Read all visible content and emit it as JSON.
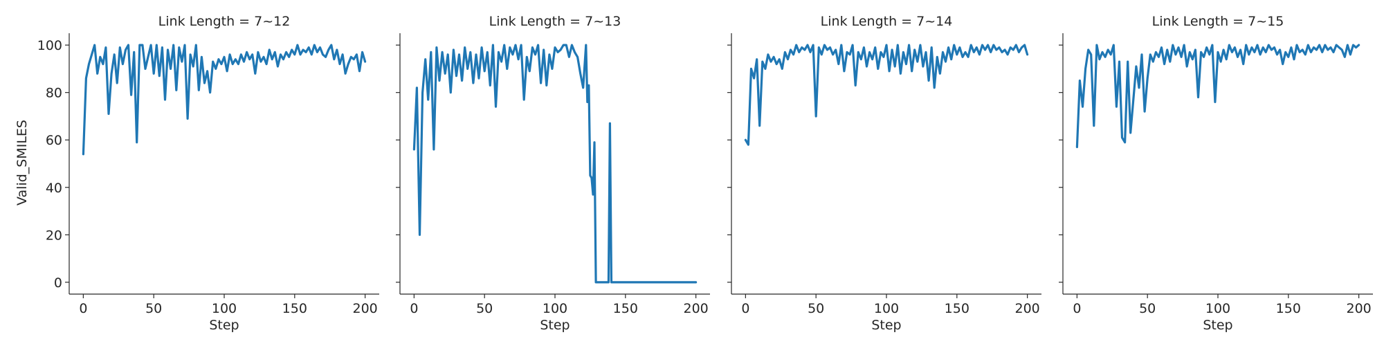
{
  "chart_data": {
    "type": "line",
    "layout": "facet-grid 1x4",
    "shared_y": true,
    "ylabel": "Valid_SMILES",
    "xlabel": "Step",
    "xlim": [
      -10,
      210
    ],
    "ylim": [
      -5,
      105
    ],
    "xticks": [
      0,
      50,
      100,
      150,
      200
    ],
    "yticks": [
      0,
      20,
      40,
      60,
      80,
      100
    ],
    "line_color": "#1f77b4",
    "panels": [
      {
        "title": "Link Length = 7~12",
        "x": [
          0,
          2,
          4,
          6,
          8,
          10,
          12,
          14,
          16,
          18,
          20,
          22,
          24,
          26,
          28,
          30,
          32,
          34,
          36,
          38,
          40,
          42,
          44,
          46,
          48,
          50,
          52,
          54,
          56,
          58,
          60,
          62,
          64,
          66,
          68,
          70,
          72,
          74,
          76,
          78,
          80,
          82,
          84,
          86,
          88,
          90,
          92,
          94,
          96,
          98,
          100,
          102,
          104,
          106,
          108,
          110,
          112,
          114,
          116,
          118,
          120,
          122,
          124,
          126,
          128,
          130,
          132,
          134,
          136,
          138,
          140,
          142,
          144,
          146,
          148,
          150,
          152,
          154,
          156,
          158,
          160,
          162,
          164,
          166,
          168,
          170,
          172,
          174,
          176,
          178,
          180,
          182,
          184,
          186,
          188,
          190,
          192,
          194,
          196,
          198,
          200
        ],
        "y": [
          54,
          86,
          92,
          96,
          100,
          88,
          95,
          92,
          99,
          71,
          88,
          96,
          84,
          99,
          92,
          98,
          100,
          79,
          97,
          59,
          100,
          100,
          90,
          95,
          100,
          88,
          100,
          87,
          99,
          77,
          98,
          90,
          100,
          81,
          99,
          93,
          100,
          69,
          96,
          91,
          100,
          81,
          95,
          84,
          89,
          80,
          93,
          90,
          94,
          92,
          95,
          89,
          96,
          92,
          94,
          92,
          96,
          93,
          97,
          94,
          96,
          88,
          97,
          93,
          95,
          92,
          98,
          94,
          97,
          91,
          96,
          94,
          97,
          95,
          98,
          96,
          100,
          96,
          98,
          97,
          99,
          96,
          100,
          97,
          99,
          96,
          95,
          98,
          100,
          94,
          98,
          92,
          96,
          88,
          92,
          95,
          94,
          96,
          89,
          97,
          93
        ]
      },
      {
        "title": "Link Length = 7~13",
        "x": [
          0,
          2,
          4,
          6,
          8,
          10,
          12,
          14,
          16,
          18,
          20,
          22,
          24,
          26,
          28,
          30,
          32,
          34,
          36,
          38,
          40,
          42,
          44,
          46,
          48,
          50,
          52,
          54,
          56,
          58,
          60,
          62,
          64,
          66,
          68,
          70,
          72,
          74,
          76,
          78,
          80,
          82,
          84,
          86,
          88,
          90,
          92,
          94,
          96,
          98,
          100,
          102,
          104,
          106,
          108,
          110,
          112,
          114,
          116,
          118,
          120,
          122,
          123,
          124,
          125,
          126,
          127,
          128,
          129,
          130,
          132,
          134,
          136,
          138,
          139,
          140,
          141,
          142,
          144,
          150,
          160,
          170,
          180,
          190,
          200
        ],
        "y": [
          56,
          82,
          20,
          80,
          94,
          77,
          97,
          56,
          99,
          85,
          97,
          88,
          96,
          80,
          98,
          87,
          96,
          85,
          99,
          90,
          97,
          84,
          96,
          86,
          99,
          89,
          97,
          83,
          100,
          74,
          97,
          93,
          100,
          90,
          99,
          96,
          100,
          94,
          100,
          77,
          95,
          89,
          99,
          96,
          100,
          84,
          98,
          83,
          96,
          90,
          99,
          97,
          98,
          100,
          100,
          95,
          100,
          97,
          95,
          88,
          82,
          100,
          76,
          83,
          45,
          44,
          37,
          59,
          0,
          0,
          0,
          0,
          0,
          0,
          67,
          0,
          0,
          0,
          0,
          0,
          0,
          0,
          0,
          0,
          0
        ]
      },
      {
        "title": "Link Length = 7~14",
        "x": [
          0,
          2,
          4,
          6,
          8,
          10,
          12,
          14,
          16,
          18,
          20,
          22,
          24,
          26,
          28,
          30,
          32,
          34,
          36,
          38,
          40,
          42,
          44,
          46,
          48,
          50,
          52,
          54,
          56,
          58,
          60,
          62,
          64,
          66,
          68,
          70,
          72,
          74,
          76,
          78,
          80,
          82,
          84,
          86,
          88,
          90,
          92,
          94,
          96,
          98,
          100,
          102,
          104,
          106,
          108,
          110,
          112,
          114,
          116,
          118,
          120,
          122,
          124,
          126,
          128,
          130,
          132,
          134,
          136,
          138,
          140,
          142,
          144,
          146,
          148,
          150,
          152,
          154,
          156,
          158,
          160,
          162,
          164,
          166,
          168,
          170,
          172,
          174,
          176,
          178,
          180,
          182,
          184,
          186,
          188,
          190,
          192,
          194,
          196,
          198,
          200
        ],
        "y": [
          60,
          58,
          90,
          86,
          94,
          66,
          93,
          90,
          96,
          93,
          95,
          92,
          94,
          90,
          97,
          94,
          98,
          96,
          100,
          97,
          99,
          98,
          100,
          97,
          100,
          70,
          99,
          96,
          100,
          98,
          99,
          96,
          98,
          92,
          100,
          89,
          97,
          96,
          100,
          83,
          97,
          94,
          99,
          91,
          97,
          94,
          99,
          90,
          97,
          95,
          100,
          89,
          98,
          91,
          100,
          88,
          97,
          92,
          100,
          89,
          98,
          93,
          100,
          91,
          97,
          85,
          99,
          82,
          95,
          88,
          97,
          93,
          99,
          94,
          100,
          96,
          99,
          95,
          97,
          95,
          100,
          97,
          99,
          96,
          100,
          98,
          100,
          97,
          100,
          98,
          99,
          97,
          98,
          96,
          99,
          98,
          100,
          97,
          99,
          100,
          96
        ]
      },
      {
        "title": "Link Length = 7~15",
        "x": [
          0,
          2,
          4,
          6,
          8,
          10,
          12,
          14,
          16,
          18,
          20,
          22,
          24,
          26,
          28,
          30,
          32,
          34,
          36,
          38,
          40,
          42,
          44,
          46,
          48,
          50,
          52,
          54,
          56,
          58,
          60,
          62,
          64,
          66,
          68,
          70,
          72,
          74,
          76,
          78,
          80,
          82,
          84,
          86,
          88,
          90,
          92,
          94,
          96,
          98,
          100,
          102,
          104,
          106,
          108,
          110,
          112,
          114,
          116,
          118,
          120,
          122,
          124,
          126,
          128,
          130,
          132,
          134,
          136,
          138,
          140,
          142,
          144,
          146,
          148,
          150,
          152,
          154,
          156,
          158,
          160,
          162,
          164,
          166,
          168,
          170,
          172,
          174,
          176,
          178,
          180,
          182,
          184,
          186,
          188,
          190,
          192,
          194,
          196,
          198,
          200
        ],
        "y": [
          57,
          85,
          74,
          90,
          98,
          96,
          66,
          100,
          94,
          97,
          95,
          98,
          96,
          100,
          74,
          93,
          61,
          59,
          93,
          63,
          77,
          91,
          82,
          96,
          72,
          86,
          96,
          93,
          97,
          95,
          99,
          92,
          98,
          93,
          100,
          96,
          99,
          95,
          100,
          91,
          97,
          94,
          98,
          78,
          97,
          95,
          99,
          96,
          100,
          76,
          97,
          93,
          98,
          94,
          100,
          97,
          99,
          95,
          98,
          92,
          100,
          96,
          99,
          97,
          100,
          96,
          99,
          97,
          100,
          98,
          99,
          96,
          98,
          92,
          97,
          95,
          99,
          94,
          100,
          97,
          98,
          96,
          100,
          97,
          99,
          98,
          100,
          97,
          100,
          98,
          99,
          97,
          100,
          99,
          98,
          95,
          100,
          96,
          100,
          99,
          100
        ]
      }
    ]
  }
}
